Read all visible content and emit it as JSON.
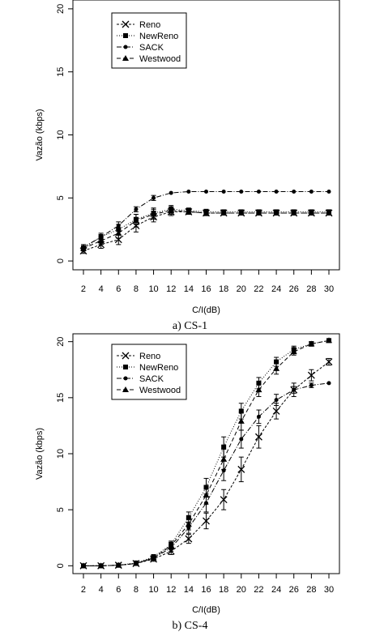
{
  "chart_data": [
    {
      "type": "line",
      "caption": "a) CS-1",
      "title": "",
      "xlabel": "C/I(dB)",
      "ylabel": "Vazão (kbps)",
      "x": [
        2,
        4,
        6,
        8,
        10,
        12,
        14,
        16,
        18,
        20,
        22,
        24,
        26,
        28,
        30
      ],
      "xticks": [
        "2",
        "4",
        "6",
        "8",
        "10",
        "12",
        "14",
        "16",
        "18",
        "20",
        "22",
        "24",
        "26",
        "28",
        "30"
      ],
      "yticks": [
        "0",
        "5",
        "10",
        "15",
        "20"
      ],
      "ylim": [
        -0.7,
        20.7
      ],
      "legend_position": "top-left",
      "grid": false,
      "series": [
        {
          "name": "Reno",
          "marker": "x",
          "dash": "3,2",
          "values": [
            0.8,
            1.3,
            1.7,
            2.8,
            3.5,
            3.9,
            3.9,
            3.8,
            3.8,
            3.8,
            3.8,
            3.8,
            3.8,
            3.8,
            3.8
          ],
          "err": [
            0.2,
            0.3,
            0.4,
            0.5,
            0.4,
            0.3,
            0.2,
            0.2,
            0.1,
            0.1,
            0.1,
            0.1,
            0.1,
            0.1,
            0.1
          ]
        },
        {
          "name": "NewReno",
          "marker": "square",
          "dash": "1,2",
          "values": [
            1.0,
            1.9,
            2.5,
            3.3,
            3.8,
            4.1,
            4.0,
            3.9,
            3.9,
            3.9,
            3.9,
            3.9,
            3.9,
            3.9,
            3.9
          ],
          "err": [
            0.2,
            0.3,
            0.4,
            0.4,
            0.4,
            0.3,
            0.2,
            0.2,
            0.1,
            0.1,
            0.1,
            0.1,
            0.1,
            0.1,
            0.1
          ]
        },
        {
          "name": "SACK",
          "marker": "dot",
          "dash": "6,2,1,2",
          "values": [
            1.1,
            1.9,
            2.8,
            4.1,
            5.0,
            5.4,
            5.5,
            5.5,
            5.5,
            5.5,
            5.5,
            5.5,
            5.5,
            5.5,
            5.5
          ],
          "err": [
            0.2,
            0.2,
            0.3,
            0.2,
            0.2,
            0.1,
            0.1,
            0.05,
            0.05,
            0.05,
            0.05,
            0.05,
            0.05,
            0.05,
            0.05
          ]
        },
        {
          "name": "Westwood",
          "marker": "triangle",
          "dash": "5,3",
          "values": [
            1.0,
            1.6,
            2.2,
            3.2,
            3.7,
            4.0,
            3.9,
            3.8,
            3.8,
            3.8,
            3.8,
            3.8,
            3.8,
            3.8,
            3.8
          ],
          "err": [
            0.2,
            0.3,
            0.4,
            0.5,
            0.4,
            0.3,
            0.2,
            0.2,
            0.1,
            0.1,
            0.1,
            0.1,
            0.1,
            0.1,
            0.1
          ]
        }
      ]
    },
    {
      "type": "line",
      "caption": "b) CS-4",
      "title": "",
      "xlabel": "C/I(dB)",
      "ylabel": "Vazão (kbps)",
      "x": [
        2,
        4,
        6,
        8,
        10,
        12,
        14,
        16,
        18,
        20,
        22,
        24,
        26,
        28,
        30
      ],
      "xticks": [
        "2",
        "4",
        "6",
        "8",
        "10",
        "12",
        "14",
        "16",
        "18",
        "20",
        "22",
        "24",
        "26",
        "28",
        "30"
      ],
      "yticks": [
        "0",
        "5",
        "10",
        "15",
        "20"
      ],
      "ylim": [
        -0.7,
        20.7
      ],
      "legend_position": "top-left",
      "grid": false,
      "series": [
        {
          "name": "Reno",
          "marker": "x",
          "dash": "3,2",
          "values": [
            0.0,
            0.0,
            0.05,
            0.2,
            0.6,
            1.3,
            2.4,
            4.0,
            5.9,
            8.6,
            11.5,
            13.8,
            15.7,
            17.0,
            18.2
          ],
          "err": [
            0.05,
            0.05,
            0.05,
            0.1,
            0.2,
            0.3,
            0.4,
            0.7,
            0.9,
            1.1,
            1.0,
            0.7,
            0.6,
            0.5,
            0.3
          ]
        },
        {
          "name": "NewReno",
          "marker": "square",
          "dash": "1,2",
          "values": [
            0.0,
            0.0,
            0.05,
            0.25,
            0.8,
            1.9,
            4.3,
            7.0,
            10.6,
            13.8,
            16.3,
            18.2,
            19.3,
            19.8,
            20.1
          ],
          "err": [
            0.05,
            0.05,
            0.05,
            0.1,
            0.2,
            0.3,
            0.5,
            0.8,
            0.9,
            0.7,
            0.5,
            0.4,
            0.3,
            0.2,
            0.1
          ]
        },
        {
          "name": "SACK",
          "marker": "dot",
          "dash": "6,2,1,2",
          "values": [
            0.0,
            0.0,
            0.05,
            0.2,
            0.7,
            1.6,
            3.4,
            5.6,
            8.5,
            11.3,
            13.3,
            14.8,
            15.7,
            16.1,
            16.3
          ],
          "err": [
            0.05,
            0.05,
            0.05,
            0.1,
            0.2,
            0.3,
            0.5,
            0.8,
            0.9,
            0.8,
            0.6,
            0.5,
            0.3,
            0.2,
            0.1
          ]
        },
        {
          "name": "Westwood",
          "marker": "triangle",
          "dash": "5,3",
          "values": [
            0.0,
            0.0,
            0.05,
            0.2,
            0.7,
            1.8,
            3.7,
            6.3,
            9.5,
            12.9,
            15.7,
            17.6,
            19.1,
            19.8,
            20.1
          ],
          "err": [
            0.05,
            0.05,
            0.05,
            0.1,
            0.2,
            0.3,
            0.5,
            0.8,
            0.9,
            0.8,
            0.6,
            0.5,
            0.3,
            0.2,
            0.1
          ]
        }
      ]
    }
  ]
}
